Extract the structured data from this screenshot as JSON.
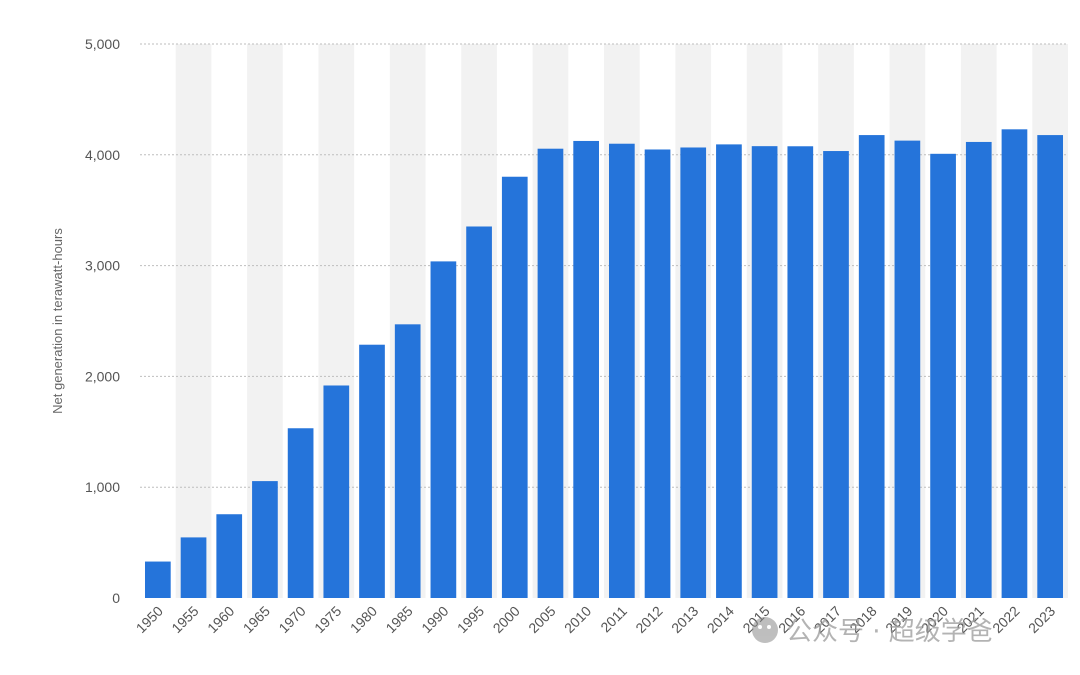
{
  "chart_data": {
    "type": "bar",
    "categories": [
      "1950",
      "1955",
      "1960",
      "1965",
      "1970",
      "1975",
      "1980",
      "1985",
      "1990",
      "1995",
      "2000",
      "2005",
      "2010",
      "2011",
      "2012",
      "2013",
      "2014",
      "2015",
      "2016",
      "2017",
      "2018",
      "2019",
      "2020",
      "2021",
      "2022",
      "2023"
    ],
    "values": [
      329,
      547,
      756,
      1055,
      1532,
      1918,
      2286,
      2470,
      3038,
      3353,
      3802,
      4055,
      4125,
      4100,
      4048,
      4066,
      4094,
      4078,
      4077,
      4034,
      4178,
      4128,
      4009,
      4116,
      4230,
      4178
    ],
    "ylabel": "Net generation in terawatt-hours",
    "ylim": [
      0,
      5000
    ],
    "yticks": [
      0,
      1000,
      2000,
      3000,
      4000,
      5000
    ],
    "ytick_labels": [
      "0",
      "1,000",
      "2,000",
      "3,000",
      "4,000",
      "5,000"
    ],
    "grid": true,
    "bar_color": "#2574DA",
    "band_color": "#F2F2F2",
    "grid_color": "#BEBEBE"
  },
  "watermark": {
    "text": "公众号 · 超级学爸",
    "icon": "wechat-icon"
  }
}
